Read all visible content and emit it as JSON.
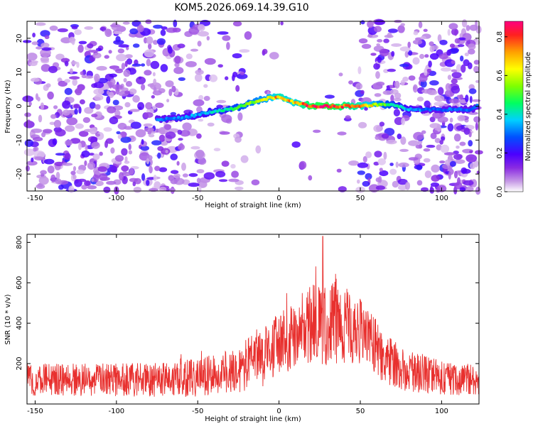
{
  "chart_data": [
    {
      "type": "heatmap",
      "title": "KOM5.2026.069.14.39.G10",
      "xlabel": "Height of straight line (km)",
      "ylabel": "Frequency (Hz)",
      "xlim": [
        -155,
        123
      ],
      "ylim": [
        -25,
        25
      ],
      "xticks": [
        -150,
        -100,
        -50,
        0,
        50,
        100
      ],
      "xtick_labels": [
        "-150",
        "-100",
        "-50",
        "0",
        "50",
        "100"
      ],
      "yticks": [
        -20,
        -10,
        0,
        10,
        20
      ],
      "ytick_labels": [
        "-20",
        "-10",
        "0",
        "10",
        "20"
      ],
      "colorbar": {
        "label": "Normalized spectral amplitude",
        "range": [
          0.0,
          0.88
        ],
        "ticks": [
          0.0,
          0.2,
          0.4,
          0.6,
          0.8
        ],
        "tick_labels": [
          "0.0",
          "0.2",
          "0.4",
          "0.6",
          "0.8"
        ]
      },
      "ridge": {
        "description": "dominant frequency track versus height",
        "x": [
          -75,
          -60,
          -50,
          -40,
          -30,
          -20,
          -10,
          -5,
          0,
          5,
          10,
          20,
          30,
          40,
          50,
          60,
          70,
          80,
          90,
          100,
          110,
          118,
          122
        ],
        "frequency": [
          -4,
          -3.5,
          -2.5,
          -1.5,
          -1,
          0.5,
          2,
          2.5,
          2.5,
          2,
          1,
          0,
          0,
          0,
          0,
          0.5,
          0.5,
          -1,
          -1,
          -1,
          -1,
          -1,
          0
        ],
        "amplitude": [
          0.3,
          0.32,
          0.35,
          0.4,
          0.45,
          0.55,
          0.6,
          0.65,
          0.75,
          0.7,
          0.7,
          0.85,
          0.88,
          0.8,
          0.75,
          0.6,
          0.45,
          0.35,
          0.3,
          0.3,
          0.3,
          0.3,
          0.3
        ]
      },
      "noise_region_note": "scattered low-amplitude patches fill x < -60 and x > 65"
    },
    {
      "type": "line",
      "title": "",
      "xlabel": "Height of straight line (km)",
      "ylabel": "SNR (10 * v/v)",
      "xlim": [
        -155,
        123
      ],
      "ylim": [
        0,
        840
      ],
      "xticks": [
        -150,
        -100,
        -50,
        0,
        50,
        100
      ],
      "xtick_labels": [
        "-150",
        "-100",
        "-50",
        "0",
        "50",
        "100"
      ],
      "yticks": [
        200,
        400,
        600,
        800
      ],
      "ytick_labels": [
        "200",
        "400",
        "600",
        "800"
      ],
      "series": [
        {
          "name": "SNR",
          "color": "#e8302e",
          "envelope_x": [
            -155,
            -120,
            -80,
            -50,
            -30,
            -10,
            0,
            10,
            20,
            30,
            40,
            50,
            60,
            70,
            80,
            100,
            123
          ],
          "envelope_mean": [
            120,
            120,
            120,
            130,
            160,
            230,
            290,
            340,
            390,
            420,
            400,
            340,
            270,
            200,
            160,
            130,
            120
          ],
          "envelope_spread": [
            80,
            80,
            85,
            95,
            110,
            150,
            170,
            180,
            200,
            230,
            200,
            180,
            150,
            120,
            100,
            85,
            80
          ],
          "peak": {
            "x": 27,
            "value": 830
          }
        }
      ]
    }
  ],
  "colors": {
    "line": "#e8302e",
    "background": "#ffffff",
    "axis": "#000000"
  }
}
